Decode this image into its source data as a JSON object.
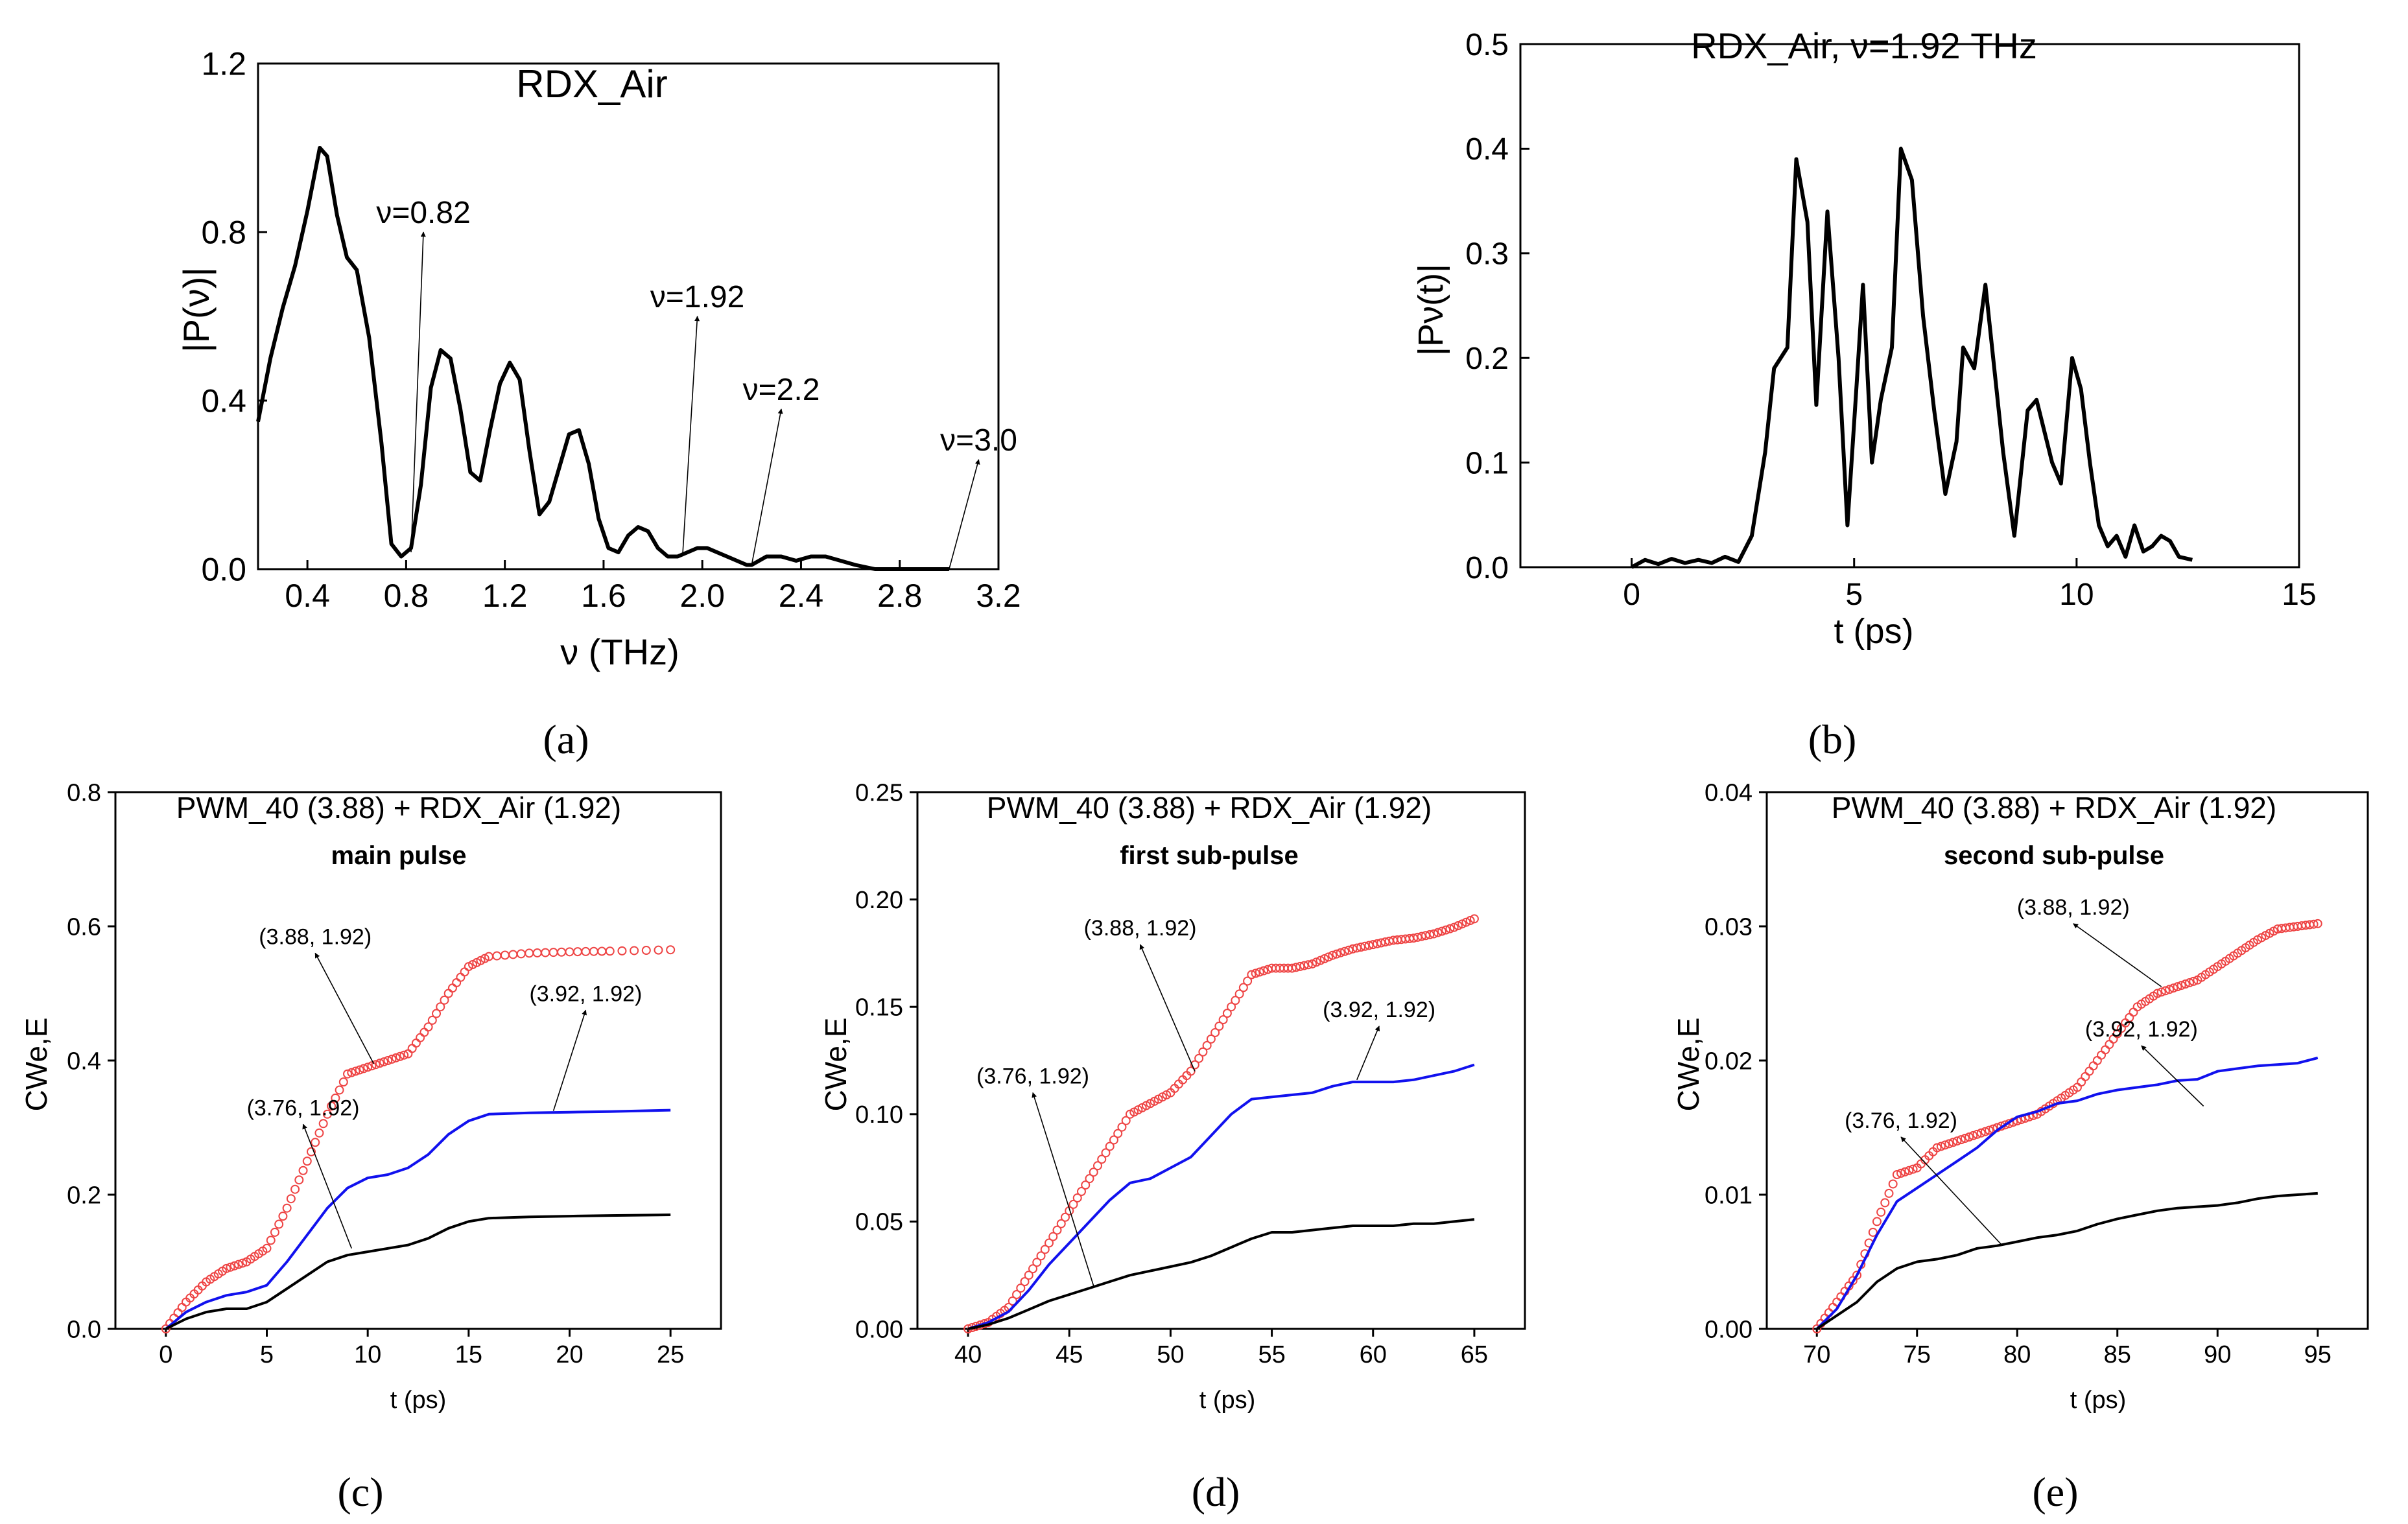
{
  "figure": {
    "captions": [
      "(a)",
      "(b)",
      "(c)",
      "(d)",
      "(e)"
    ]
  },
  "chart_data": [
    {
      "id": "a",
      "type": "line",
      "title": "RDX_Air",
      "xlabel": "ν (THz)",
      "ylabel": "|P(ν)|",
      "xlim": [
        0.2,
        3.2
      ],
      "ylim": [
        0.0,
        1.2
      ],
      "xticks": [
        0.4,
        0.8,
        1.2,
        1.6,
        2.0,
        2.4,
        2.8,
        3.2
      ],
      "xtick_labels": [
        "0.4",
        "0.8",
        "1.2",
        "1.6",
        "2.0",
        "2.4",
        "2.8",
        "3.2"
      ],
      "yticks": [
        0.0,
        0.4,
        0.8,
        1.2
      ],
      "ytick_labels": [
        "0.0",
        "0.4",
        "0.8",
        "1.2"
      ],
      "series": [
        {
          "name": "|P(ν)|",
          "color": "#000000",
          "x": [
            0.2,
            0.25,
            0.3,
            0.35,
            0.4,
            0.45,
            0.48,
            0.52,
            0.56,
            0.6,
            0.65,
            0.7,
            0.74,
            0.78,
            0.82,
            0.86,
            0.9,
            0.94,
            0.98,
            1.02,
            1.06,
            1.1,
            1.14,
            1.18,
            1.22,
            1.26,
            1.3,
            1.34,
            1.38,
            1.42,
            1.46,
            1.5,
            1.54,
            1.58,
            1.62,
            1.66,
            1.7,
            1.74,
            1.78,
            1.82,
            1.86,
            1.9,
            1.94,
            1.98,
            2.02,
            2.06,
            2.1,
            2.14,
            2.18,
            2.2,
            2.26,
            2.32,
            2.38,
            2.44,
            2.5,
            2.56,
            2.62,
            2.7,
            2.8,
            2.9,
            3.0
          ],
          "y": [
            0.35,
            0.5,
            0.62,
            0.72,
            0.85,
            1.0,
            0.98,
            0.84,
            0.74,
            0.71,
            0.55,
            0.3,
            0.06,
            0.03,
            0.05,
            0.2,
            0.43,
            0.52,
            0.5,
            0.38,
            0.23,
            0.21,
            0.33,
            0.44,
            0.49,
            0.45,
            0.28,
            0.13,
            0.16,
            0.24,
            0.32,
            0.33,
            0.25,
            0.12,
            0.05,
            0.04,
            0.08,
            0.1,
            0.09,
            0.05,
            0.03,
            0.03,
            0.04,
            0.05,
            0.05,
            0.04,
            0.03,
            0.02,
            0.01,
            0.01,
            0.03,
            0.03,
            0.02,
            0.03,
            0.03,
            0.02,
            0.01,
            0.0,
            0.0,
            0.0,
            0.0
          ]
        }
      ],
      "annotations": [
        {
          "text": "ν=0.82",
          "tip": [
            0.82,
            0.04
          ],
          "head": [
            0.87,
            0.8
          ]
        },
        {
          "text": "ν=1.92",
          "tip": [
            1.92,
            0.03
          ],
          "head": [
            1.98,
            0.6
          ]
        },
        {
          "text": "ν=2.2",
          "tip": [
            2.2,
            0.01
          ],
          "head": [
            2.32,
            0.38
          ]
        },
        {
          "text": "ν=3.0",
          "tip": [
            3.0,
            0.0
          ],
          "head": [
            3.12,
            0.26
          ]
        }
      ]
    },
    {
      "id": "b",
      "type": "line",
      "title": "RDX_Air,  ν=1.92 THz",
      "xlabel": "t (ps)",
      "ylabel": "|Pν(t)|",
      "xlim": [
        -2.5,
        15.0
      ],
      "ylim": [
        0.0,
        0.5
      ],
      "xticks": [
        0,
        5,
        10,
        15
      ],
      "xtick_labels": [
        "0",
        "5",
        "10",
        "15"
      ],
      "yticks": [
        0.0,
        0.1,
        0.2,
        0.3,
        0.4,
        0.5
      ],
      "ytick_labels": [
        "0.0",
        "0.1",
        "0.2",
        "0.3",
        "0.4",
        "0.5"
      ],
      "series": [
        {
          "name": "|Pν(t)|",
          "color": "#000000",
          "x": [
            0,
            0.3,
            0.6,
            0.9,
            1.2,
            1.5,
            1.8,
            2.1,
            2.4,
            2.7,
            3.0,
            3.2,
            3.5,
            3.7,
            3.95,
            4.15,
            4.4,
            4.65,
            4.85,
            5.05,
            5.2,
            5.4,
            5.6,
            5.85,
            6.05,
            6.3,
            6.55,
            6.8,
            7.05,
            7.3,
            7.45,
            7.7,
            7.95,
            8.15,
            8.35,
            8.6,
            8.9,
            9.1,
            9.45,
            9.65,
            9.9,
            10.1,
            10.3,
            10.5,
            10.7,
            10.9,
            11.1,
            11.3,
            11.5,
            11.7,
            11.9,
            12.1,
            12.3,
            12.6
          ],
          "y": [
            0.0,
            0.007,
            0.003,
            0.008,
            0.004,
            0.007,
            0.004,
            0.01,
            0.005,
            0.03,
            0.11,
            0.19,
            0.21,
            0.39,
            0.33,
            0.155,
            0.34,
            0.2,
            0.04,
            0.17,
            0.27,
            0.1,
            0.16,
            0.21,
            0.4,
            0.37,
            0.24,
            0.15,
            0.07,
            0.12,
            0.21,
            0.19,
            0.27,
            0.19,
            0.11,
            0.03,
            0.15,
            0.16,
            0.1,
            0.08,
            0.2,
            0.17,
            0.1,
            0.04,
            0.02,
            0.03,
            0.01,
            0.04,
            0.015,
            0.02,
            0.03,
            0.025,
            0.01,
            0.007
          ]
        }
      ],
      "annotations": []
    },
    {
      "id": "c",
      "type": "line",
      "title": "PWM_40 (3.88) + RDX_Air (1.92)",
      "subtitle": "main pulse",
      "xlabel": "t (ps)",
      "ylabel": "CWe,E",
      "xlim": [
        -2.5,
        27.5
      ],
      "ylim": [
        0.0,
        0.8
      ],
      "xticks": [
        0,
        5,
        10,
        15,
        20,
        25
      ],
      "xtick_labels": [
        "0",
        "5",
        "10",
        "15",
        "20",
        "25"
      ],
      "yticks": [
        0.0,
        0.2,
        0.4,
        0.6,
        0.8
      ],
      "ytick_labels": [
        "0.0",
        "0.2",
        "0.4",
        "0.6",
        "0.8"
      ],
      "series": [
        {
          "name": "(3.88, 1.92)",
          "color": "#ee4444",
          "style": "circles",
          "x": [
            0,
            1,
            2,
            3,
            4,
            5,
            6,
            7,
            8,
            9,
            10,
            11,
            12,
            13,
            14,
            15,
            16,
            18,
            20,
            22,
            25
          ],
          "y": [
            0.0,
            0.04,
            0.07,
            0.09,
            0.1,
            0.12,
            0.18,
            0.25,
            0.32,
            0.38,
            0.39,
            0.4,
            0.41,
            0.45,
            0.5,
            0.54,
            0.555,
            0.56,
            0.562,
            0.563,
            0.565
          ]
        },
        {
          "name": "(3.92, 1.92)",
          "color": "#1111ee",
          "style": "line",
          "x": [
            0,
            1,
            2,
            3,
            4,
            5,
            6,
            7,
            8,
            9,
            10,
            11,
            12,
            13,
            14,
            15,
            16,
            18,
            20,
            22,
            25
          ],
          "y": [
            0.0,
            0.025,
            0.04,
            0.05,
            0.055,
            0.065,
            0.1,
            0.14,
            0.18,
            0.21,
            0.225,
            0.23,
            0.24,
            0.26,
            0.29,
            0.31,
            0.32,
            0.322,
            0.323,
            0.324,
            0.326
          ]
        },
        {
          "name": "(3.76, 1.92)",
          "color": "#000000",
          "style": "line",
          "x": [
            0,
            1,
            2,
            3,
            4,
            5,
            6,
            7,
            8,
            9,
            10,
            11,
            12,
            13,
            14,
            15,
            16,
            18,
            20,
            22,
            25
          ],
          "y": [
            0.0,
            0.015,
            0.025,
            0.03,
            0.03,
            0.04,
            0.06,
            0.08,
            0.1,
            0.11,
            0.115,
            0.12,
            0.125,
            0.135,
            0.15,
            0.16,
            0.165,
            0.167,
            0.168,
            0.169,
            0.17
          ]
        }
      ],
      "annotations": [
        {
          "text": "(3.88, 1.92)",
          "tip": [
            10.3,
            0.395
          ],
          "head": [
            7.4,
            0.56
          ]
        },
        {
          "text": "(3.92, 1.92)",
          "tip": [
            19.2,
            0.325
          ],
          "head": [
            20.8,
            0.475
          ]
        },
        {
          "text": "(3.76, 1.92)",
          "tip": [
            9.2,
            0.12
          ],
          "head": [
            6.8,
            0.305
          ]
        }
      ]
    },
    {
      "id": "d",
      "type": "line",
      "title": "PWM_40 (3.88) + RDX_Air (1.92)",
      "subtitle": "first sub-pulse",
      "xlabel": "t (ps)",
      "ylabel": "CWe,E",
      "xlim": [
        37.5,
        67.5
      ],
      "ylim": [
        0.0,
        0.25
      ],
      "xticks": [
        40,
        45,
        50,
        55,
        60,
        65
      ],
      "xtick_labels": [
        "40",
        "45",
        "50",
        "55",
        "60",
        "65"
      ],
      "yticks": [
        0.0,
        0.05,
        0.1,
        0.15,
        0.2,
        0.25
      ],
      "ytick_labels": [
        "0.00",
        "0.05",
        "0.10",
        "0.15",
        "0.20",
        "0.25"
      ],
      "series": [
        {
          "name": "(3.88, 1.92)",
          "color": "#ee4444",
          "style": "circles",
          "x": [
            40,
            41,
            42,
            43,
            44,
            45,
            46,
            47,
            48,
            49,
            50,
            51,
            52,
            53,
            54,
            55,
            56,
            57,
            58,
            59,
            60,
            61,
            62,
            63,
            64,
            65
          ],
          "y": [
            0.0,
            0.003,
            0.01,
            0.025,
            0.04,
            0.055,
            0.07,
            0.085,
            0.1,
            0.105,
            0.11,
            0.12,
            0.135,
            0.15,
            0.165,
            0.168,
            0.168,
            0.17,
            0.174,
            0.177,
            0.179,
            0.181,
            0.182,
            0.184,
            0.187,
            0.191
          ]
        },
        {
          "name": "(3.92, 1.92)",
          "color": "#1111ee",
          "style": "line",
          "x": [
            40,
            41,
            42,
            43,
            44,
            45,
            46,
            47,
            48,
            49,
            50,
            51,
            52,
            53,
            54,
            55,
            56,
            57,
            58,
            59,
            60,
            61,
            62,
            63,
            64,
            65
          ],
          "y": [
            0.0,
            0.003,
            0.008,
            0.018,
            0.03,
            0.04,
            0.05,
            0.06,
            0.068,
            0.07,
            0.075,
            0.08,
            0.09,
            0.1,
            0.107,
            0.108,
            0.109,
            0.11,
            0.113,
            0.115,
            0.115,
            0.115,
            0.116,
            0.118,
            0.12,
            0.123
          ]
        },
        {
          "name": "(3.76, 1.92)",
          "color": "#000000",
          "style": "line",
          "x": [
            40,
            41,
            42,
            43,
            44,
            45,
            46,
            47,
            48,
            49,
            50,
            51,
            52,
            53,
            54,
            55,
            56,
            57,
            58,
            59,
            60,
            61,
            62,
            63,
            64,
            65
          ],
          "y": [
            0.0,
            0.002,
            0.005,
            0.009,
            0.013,
            0.016,
            0.019,
            0.022,
            0.025,
            0.027,
            0.029,
            0.031,
            0.034,
            0.038,
            0.042,
            0.045,
            0.045,
            0.046,
            0.047,
            0.048,
            0.048,
            0.048,
            0.049,
            0.049,
            0.05,
            0.051
          ]
        }
      ],
      "annotations": [
        {
          "text": "(3.88, 1.92)",
          "tip": [
            51.2,
            0.12
          ],
          "head": [
            48.5,
            0.179
          ]
        },
        {
          "text": "(3.92, 1.92)",
          "tip": [
            59.2,
            0.116
          ],
          "head": [
            60.3,
            0.141
          ]
        },
        {
          "text": "(3.76, 1.92)",
          "tip": [
            46.2,
            0.02
          ],
          "head": [
            43.2,
            0.11
          ]
        }
      ]
    },
    {
      "id": "e",
      "type": "line",
      "title": "PWM_40 (3.88) + RDX_Air (1.92)",
      "subtitle": "second sub-pulse",
      "xlabel": "t (ps)",
      "ylabel": "CWe,E",
      "xlim": [
        67.5,
        97.5
      ],
      "ylim": [
        0.0,
        0.04
      ],
      "xticks": [
        70,
        75,
        80,
        85,
        90,
        95
      ],
      "xtick_labels": [
        "70",
        "75",
        "80",
        "85",
        "90",
        "95"
      ],
      "yticks": [
        0.0,
        0.01,
        0.02,
        0.03,
        0.04
      ],
      "ytick_labels": [
        "0.00",
        "0.01",
        "0.02",
        "0.03",
        "0.04"
      ],
      "series": [
        {
          "name": "(3.88, 1.92)",
          "color": "#ee4444",
          "style": "circles",
          "x": [
            70,
            71,
            72,
            73,
            74,
            75,
            76,
            77,
            78,
            79,
            80,
            81,
            82,
            83,
            84,
            85,
            86,
            87,
            88,
            89,
            90,
            91,
            92,
            93,
            94,
            95
          ],
          "y": [
            0.0,
            0.002,
            0.004,
            0.008,
            0.0115,
            0.012,
            0.0135,
            0.014,
            0.0145,
            0.015,
            0.0155,
            0.016,
            0.017,
            0.018,
            0.02,
            0.022,
            0.024,
            0.025,
            0.0255,
            0.026,
            0.027,
            0.028,
            0.029,
            0.0298,
            0.03,
            0.0302
          ]
        },
        {
          "name": "(3.92, 1.92)",
          "color": "#1111ee",
          "style": "line",
          "x": [
            70,
            71,
            72,
            73,
            74,
            75,
            76,
            77,
            78,
            79,
            80,
            81,
            82,
            83,
            84,
            85,
            86,
            87,
            88,
            89,
            90,
            91,
            92,
            93,
            94,
            95
          ],
          "y": [
            0.0,
            0.0015,
            0.004,
            0.007,
            0.0095,
            0.0105,
            0.0115,
            0.0125,
            0.0135,
            0.0148,
            0.0158,
            0.0162,
            0.0168,
            0.017,
            0.0175,
            0.0178,
            0.018,
            0.0182,
            0.0185,
            0.0186,
            0.0192,
            0.0194,
            0.0196,
            0.0197,
            0.0198,
            0.0202
          ]
        },
        {
          "name": "(3.76, 1.92)",
          "color": "#000000",
          "style": "line",
          "x": [
            70,
            71,
            72,
            73,
            74,
            75,
            76,
            77,
            78,
            79,
            80,
            81,
            82,
            83,
            84,
            85,
            86,
            87,
            88,
            89,
            90,
            91,
            92,
            93,
            94,
            95
          ],
          "y": [
            0.0,
            0.001,
            0.002,
            0.0035,
            0.0045,
            0.005,
            0.0052,
            0.0055,
            0.006,
            0.0062,
            0.0065,
            0.0068,
            0.007,
            0.0073,
            0.0078,
            0.0082,
            0.0085,
            0.0088,
            0.009,
            0.0091,
            0.0092,
            0.0094,
            0.0097,
            0.0099,
            0.01,
            0.0101
          ]
        }
      ],
      "annotations": [
        {
          "text": "(3.88, 1.92)",
          "tip": [
            87.2,
            0.0255
          ],
          "head": [
            82.8,
            0.0302
          ]
        },
        {
          "text": "(3.92, 1.92)",
          "tip": [
            89.3,
            0.0166
          ],
          "head": [
            86.2,
            0.0211
          ]
        },
        {
          "text": "(3.76, 1.92)",
          "tip": [
            79.2,
            0.0063
          ],
          "head": [
            74.2,
            0.0143
          ]
        }
      ]
    }
  ]
}
